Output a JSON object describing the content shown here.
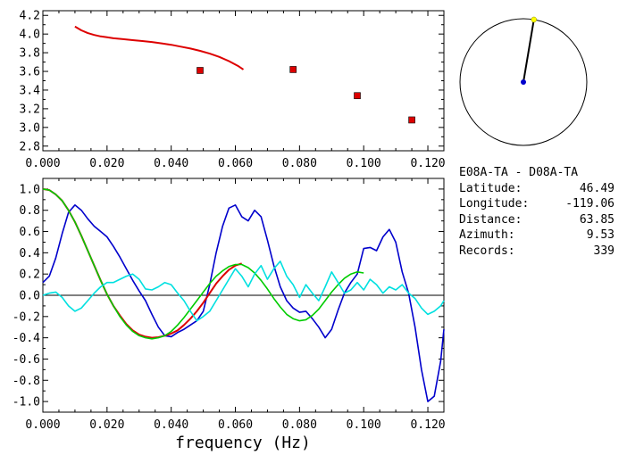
{
  "station_pair": "E08A-TA - D08A-TA",
  "info": [
    {
      "label": "Latitude:",
      "value": "46.49"
    },
    {
      "label": "Longitude:",
      "value": "-119.06"
    },
    {
      "label": "Distance:",
      "value": "63.85"
    },
    {
      "label": "Azimuth:",
      "value": "9.53"
    },
    {
      "label": "Records:",
      "value": "339"
    }
  ],
  "compass": {
    "azimuth_deg": 9.53
  },
  "chart_data": [
    {
      "type": "line",
      "panel": "dispersion",
      "xlim": [
        0,
        0.125
      ],
      "ylim": [
        2.75,
        4.25
      ],
      "xticks": [
        "0.000",
        "0.020",
        "0.040",
        "0.060",
        "0.080",
        "0.100",
        "0.120"
      ],
      "yticks": [
        "2.8",
        "3.0",
        "3.2",
        "3.4",
        "3.6",
        "3.8",
        "4.0",
        "4.2"
      ],
      "series": [
        {
          "color": "#dd0000",
          "x": [
            0.01,
            0.012,
            0.014,
            0.016,
            0.018,
            0.02,
            0.022,
            0.025,
            0.028,
            0.031,
            0.034,
            0.037,
            0.04,
            0.043,
            0.046,
            0.049,
            0.052,
            0.055,
            0.058,
            0.061,
            0.0625
          ],
          "y": [
            4.08,
            4.04,
            4.01,
            3.99,
            3.975,
            3.965,
            3.955,
            3.945,
            3.935,
            3.925,
            3.915,
            3.9,
            3.885,
            3.865,
            3.845,
            3.82,
            3.79,
            3.755,
            3.71,
            3.655,
            3.62
          ]
        }
      ],
      "points": {
        "color": "#dd0000",
        "x": [
          0.049,
          0.078,
          0.098,
          0.115
        ],
        "y": [
          3.61,
          3.62,
          3.34,
          3.08
        ]
      }
    },
    {
      "type": "line",
      "panel": "correlation",
      "xlim": [
        0,
        0.125
      ],
      "ylim": [
        -1.1,
        1.1
      ],
      "xlabel": "frequency (Hz)",
      "xticks": [
        "0.000",
        "0.020",
        "0.040",
        "0.060",
        "0.080",
        "0.100",
        "0.120"
      ],
      "yticks": [
        "1.0",
        "0.8",
        "0.6",
        "0.4",
        "0.2",
        "0.0",
        "-0.2",
        "-0.4",
        "-0.6",
        "-0.8",
        "-1.0"
      ],
      "series": [
        {
          "color": "#0000cc",
          "x": [
            0,
            0.002,
            0.004,
            0.006,
            0.008,
            0.01,
            0.012,
            0.014,
            0.016,
            0.018,
            0.02,
            0.022,
            0.024,
            0.026,
            0.028,
            0.03,
            0.032,
            0.034,
            0.036,
            0.038,
            0.04,
            0.042,
            0.044,
            0.046,
            0.048,
            0.05,
            0.052,
            0.054,
            0.056,
            0.058,
            0.06,
            0.062,
            0.064,
            0.066,
            0.068,
            0.07,
            0.072,
            0.074,
            0.076,
            0.078,
            0.08,
            0.082,
            0.084,
            0.086,
            0.088,
            0.09,
            0.092,
            0.094,
            0.096,
            0.098,
            0.1,
            0.102,
            0.104,
            0.106,
            0.108,
            0.11,
            0.112,
            0.114,
            0.116,
            0.118,
            0.12,
            0.122,
            0.124,
            0.125
          ],
          "y": [
            0.12,
            0.18,
            0.35,
            0.58,
            0.78,
            0.85,
            0.8,
            0.72,
            0.65,
            0.6,
            0.55,
            0.46,
            0.36,
            0.25,
            0.14,
            0.04,
            -0.05,
            -0.18,
            -0.3,
            -0.38,
            -0.39,
            -0.35,
            -0.32,
            -0.28,
            -0.24,
            -0.15,
            0.1,
            0.4,
            0.65,
            0.82,
            0.85,
            0.74,
            0.7,
            0.8,
            0.74,
            0.52,
            0.28,
            0.08,
            -0.05,
            -0.12,
            -0.16,
            -0.15,
            -0.22,
            -0.3,
            -0.4,
            -0.32,
            -0.14,
            0.02,
            0.12,
            0.2,
            0.44,
            0.45,
            0.42,
            0.55,
            0.62,
            0.5,
            0.22,
            0.02,
            -0.3,
            -0.7,
            -1.0,
            -0.95,
            -0.62,
            -0.32
          ]
        },
        {
          "color": "#dd0000",
          "x": [
            0,
            0.002,
            0.004,
            0.006,
            0.008,
            0.01,
            0.012,
            0.014,
            0.016,
            0.018,
            0.02,
            0.022,
            0.024,
            0.026,
            0.028,
            0.03,
            0.032,
            0.034,
            0.036,
            0.038,
            0.04,
            0.042,
            0.044,
            0.046,
            0.048,
            0.05,
            0.052,
            0.054,
            0.056,
            0.058,
            0.06,
            0.062
          ],
          "y": [
            1.0,
            0.99,
            0.95,
            0.89,
            0.8,
            0.69,
            0.56,
            0.42,
            0.28,
            0.14,
            0.01,
            -0.1,
            -0.19,
            -0.27,
            -0.33,
            -0.37,
            -0.39,
            -0.4,
            -0.395,
            -0.38,
            -0.36,
            -0.33,
            -0.28,
            -0.22,
            -0.15,
            -0.07,
            0.02,
            0.11,
            0.18,
            0.24,
            0.28,
            0.3
          ]
        },
        {
          "color": "#00cc00",
          "x": [
            0,
            0.002,
            0.004,
            0.006,
            0.008,
            0.01,
            0.012,
            0.014,
            0.016,
            0.018,
            0.02,
            0.022,
            0.024,
            0.026,
            0.028,
            0.03,
            0.032,
            0.034,
            0.036,
            0.038,
            0.04,
            0.042,
            0.044,
            0.046,
            0.048,
            0.05,
            0.052,
            0.054,
            0.056,
            0.058,
            0.06,
            0.062,
            0.064,
            0.066,
            0.068,
            0.07,
            0.072,
            0.074,
            0.076,
            0.078,
            0.08,
            0.082,
            0.084,
            0.086,
            0.088,
            0.09,
            0.092,
            0.094,
            0.096,
            0.098,
            0.1
          ],
          "y": [
            1.0,
            0.99,
            0.95,
            0.89,
            0.8,
            0.69,
            0.56,
            0.42,
            0.28,
            0.14,
            0.01,
            -0.1,
            -0.2,
            -0.28,
            -0.34,
            -0.38,
            -0.4,
            -0.41,
            -0.4,
            -0.38,
            -0.34,
            -0.28,
            -0.21,
            -0.13,
            -0.05,
            0.03,
            0.11,
            0.18,
            0.23,
            0.27,
            0.29,
            0.29,
            0.26,
            0.21,
            0.14,
            0.06,
            -0.03,
            -0.11,
            -0.18,
            -0.22,
            -0.24,
            -0.23,
            -0.19,
            -0.13,
            -0.05,
            0.03,
            0.1,
            0.16,
            0.2,
            0.22,
            0.21
          ]
        },
        {
          "color": "#00e0e0",
          "x": [
            0,
            0.002,
            0.004,
            0.006,
            0.008,
            0.01,
            0.012,
            0.014,
            0.016,
            0.018,
            0.02,
            0.022,
            0.024,
            0.026,
            0.028,
            0.03,
            0.032,
            0.034,
            0.036,
            0.038,
            0.04,
            0.042,
            0.044,
            0.046,
            0.048,
            0.05,
            0.052,
            0.054,
            0.056,
            0.058,
            0.06,
            0.062,
            0.064,
            0.066,
            0.068,
            0.07,
            0.072,
            0.074,
            0.076,
            0.078,
            0.08,
            0.082,
            0.084,
            0.086,
            0.088,
            0.09,
            0.092,
            0.094,
            0.096,
            0.098,
            0.1,
            0.102,
            0.104,
            0.106,
            0.108,
            0.11,
            0.112,
            0.114,
            0.116,
            0.118,
            0.12,
            0.122,
            0.124,
            0.125
          ],
          "y": [
            0.0,
            0.02,
            0.03,
            -0.02,
            -0.1,
            -0.15,
            -0.12,
            -0.05,
            0.02,
            0.08,
            0.12,
            0.12,
            0.15,
            0.18,
            0.2,
            0.15,
            0.06,
            0.05,
            0.08,
            0.12,
            0.1,
            0.02,
            -0.05,
            -0.15,
            -0.24,
            -0.2,
            -0.15,
            -0.05,
            0.05,
            0.15,
            0.25,
            0.18,
            0.08,
            0.2,
            0.28,
            0.15,
            0.25,
            0.32,
            0.18,
            0.1,
            -0.02,
            0.1,
            0.02,
            -0.05,
            0.08,
            0.22,
            0.12,
            0.02,
            0.05,
            0.12,
            0.05,
            0.15,
            0.1,
            0.02,
            0.08,
            0.05,
            0.1,
            0.02,
            -0.03,
            -0.12,
            -0.18,
            -0.15,
            -0.1,
            -0.05
          ]
        }
      ]
    }
  ]
}
